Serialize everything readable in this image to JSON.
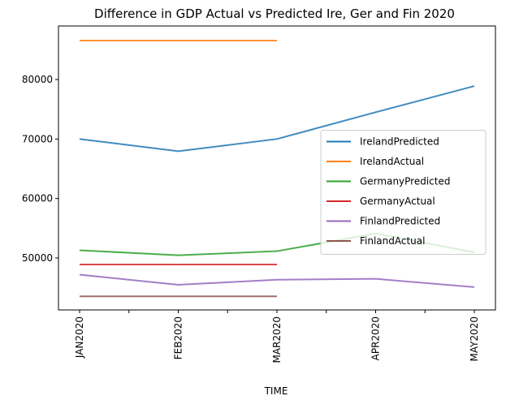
{
  "chart_data": {
    "type": "line",
    "title": "Difference in GDP Actual vs Predicted Ire, Ger and Fin 2020",
    "x_label": "TIME",
    "categories": [
      "JAN2020",
      "FEB2020",
      "MAR2020",
      "APR2020",
      "MAY2020"
    ],
    "series": [
      {
        "name": "IrelandPredicted",
        "color": "#1f77b4",
        "values": [
          70000,
          67950,
          70000,
          74500,
          78900
        ]
      },
      {
        "name": "IrelandActual",
        "color": "#ff7f0e",
        "values": [
          86550,
          86550,
          86550,
          null,
          null
        ]
      },
      {
        "name": "GermanyPredicted",
        "color": "#2ca02c",
        "values": [
          51300,
          50450,
          51150,
          54100,
          50950
        ]
      },
      {
        "name": "GermanyActual",
        "color": "#d62728",
        "values": [
          48900,
          48900,
          48900,
          null,
          null
        ]
      },
      {
        "name": "FinlandPredicted",
        "color": "#9467bd",
        "values": [
          47200,
          45500,
          46350,
          46500,
          45100
        ]
      },
      {
        "name": "FinlandActual",
        "color": "#8c564b",
        "values": [
          43550,
          43550,
          43550,
          null,
          null
        ]
      }
    ],
    "ylim": [
      41270,
      89000
    ],
    "yticks": [
      50000,
      60000,
      70000,
      80000
    ],
    "legend": "center right",
    "grid": false
  }
}
